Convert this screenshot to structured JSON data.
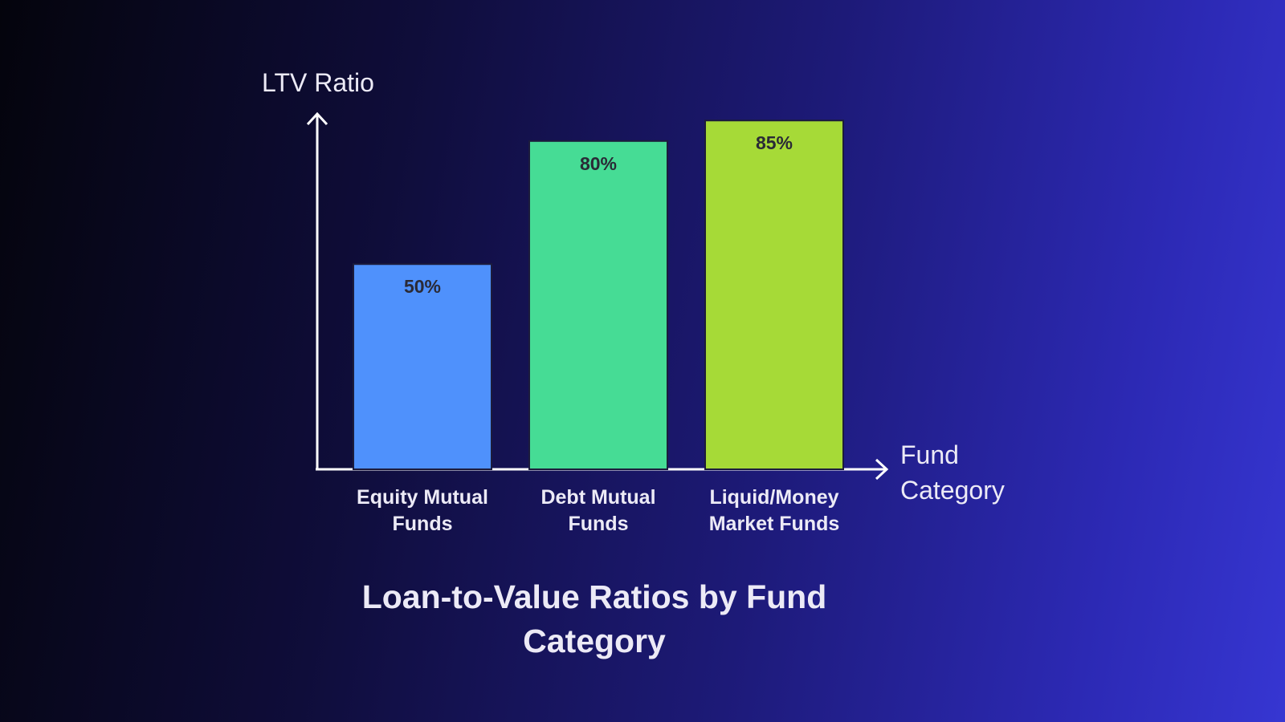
{
  "chart_data": {
    "type": "bar",
    "title": "Loan-to-Value Ratios by Fund Category",
    "y_label": "LTV Ratio",
    "x_label": "Fund Category",
    "categories": [
      "Equity Mutual Funds",
      "Debt Mutual Funds",
      "Liquid/Money Market Funds"
    ],
    "values": [
      50,
      80,
      85
    ],
    "value_labels": [
      "50%",
      "80%",
      "85%"
    ],
    "colors": [
      "#4f91fc",
      "#46dc95",
      "#a6da37"
    ],
    "ylim": [
      0,
      87
    ],
    "grid": false
  }
}
